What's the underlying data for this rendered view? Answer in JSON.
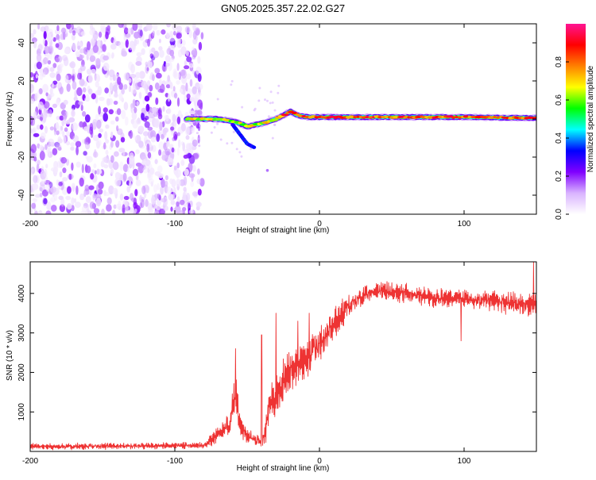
{
  "title": "GN05.2025.357.22.02.G27",
  "chart_data": [
    {
      "type": "heatmap",
      "name": "spectrogram",
      "xlabel": "Height of straight line (km)",
      "ylabel": "Frequency (Hz)",
      "xlim": [
        -200,
        150
      ],
      "ylim": [
        -50,
        50
      ],
      "xticks": [
        -200,
        -100,
        0,
        100
      ],
      "yticks": [
        -40,
        -20,
        0,
        20,
        40
      ],
      "noise_region_x": [
        -200,
        -85
      ],
      "signal_start_x": -92,
      "ridge": {
        "x": [
          -92,
          -80,
          -70,
          -62,
          -56,
          -50,
          -44,
          -38,
          -30,
          -25,
          -20,
          -15,
          -8,
          0,
          20,
          60,
          100,
          150
        ],
        "freq": [
          0,
          0,
          0,
          -1,
          -2,
          -4,
          -3,
          -2,
          0,
          2,
          4,
          2,
          1,
          1,
          1,
          1,
          1,
          0.5
        ]
      },
      "branch": {
        "x": [
          -60,
          -55,
          -50,
          -45
        ],
        "freq": [
          -3,
          -8,
          -13,
          -15
        ]
      },
      "colorbar": {
        "label": "Normalized spectral amplitude",
        "range": [
          0,
          1
        ],
        "ticks": [
          "0.0",
          "0.2",
          "0.4",
          "0.6",
          "0.8"
        ],
        "colors": [
          "#ffffff",
          "#d9b3ff",
          "#8000ff",
          "#0000ff",
          "#00ffff",
          "#00ff00",
          "#ffff00",
          "#ff8000",
          "#ff0000",
          "#ff1493"
        ]
      }
    },
    {
      "type": "line",
      "name": "snr",
      "xlabel": "Height of straight line (km)",
      "ylabel": "SNR (10 * v/v)",
      "xlim": [
        -200,
        150
      ],
      "ylim": [
        0,
        4800
      ],
      "xticks": [
        -200,
        -100,
        0,
        100
      ],
      "yticks": [
        1000,
        2000,
        3000,
        4000
      ],
      "color": "#ee3333",
      "trend": {
        "x": [
          -200,
          -80,
          -75,
          -70,
          -62,
          -58,
          -55,
          -50,
          -45,
          -40,
          -38,
          -35,
          -30,
          -25,
          -20,
          -10,
          0,
          10,
          20,
          30,
          40,
          60,
          80,
          100,
          120,
          150
        ],
        "y": [
          120,
          150,
          300,
          450,
          700,
          1500,
          650,
          400,
          300,
          250,
          400,
          1100,
          1500,
          1800,
          2000,
          2300,
          2700,
          3200,
          3700,
          3950,
          4050,
          4000,
          3900,
          3850,
          3800,
          3700
        ],
        "spread": [
          80,
          80,
          150,
          200,
          300,
          600,
          300,
          200,
          150,
          150,
          300,
          500,
          600,
          600,
          600,
          500,
          500,
          400,
          300,
          250,
          250,
          250,
          250,
          250,
          250,
          300
        ]
      },
      "spikes": [
        {
          "x": -58,
          "y": 2600
        },
        {
          "x": -40,
          "y": 2950
        },
        {
          "x": -30,
          "y": 3500
        },
        {
          "x": -15,
          "y": 3300
        },
        {
          "x": -7,
          "y": 3500
        },
        {
          "x": 98,
          "y": 2800
        },
        {
          "x": 148,
          "y": 4800
        }
      ]
    }
  ]
}
